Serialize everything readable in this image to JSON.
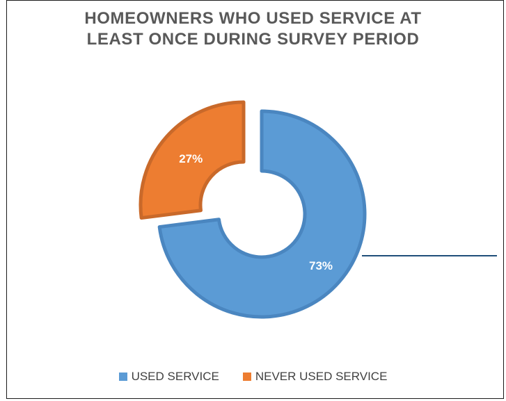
{
  "chart_data": {
    "type": "pie",
    "variant": "exploded-doughnut",
    "title": [
      "HOMEOWNERS WHO USED SERVICE AT",
      "LEAST ONCE DURING SURVEY PERIOD"
    ],
    "series": [
      {
        "name": "USED SERVICE",
        "value": 73,
        "label": "73%",
        "color": "#5b9bd5",
        "edge": "#4a86c0"
      },
      {
        "name": "NEVER USED SERVICE",
        "value": 27,
        "label": "27%",
        "color": "#ed7d31",
        "edge": "#c9692a"
      }
    ],
    "legend": "bottom",
    "leader_color": "#1f4e79"
  }
}
